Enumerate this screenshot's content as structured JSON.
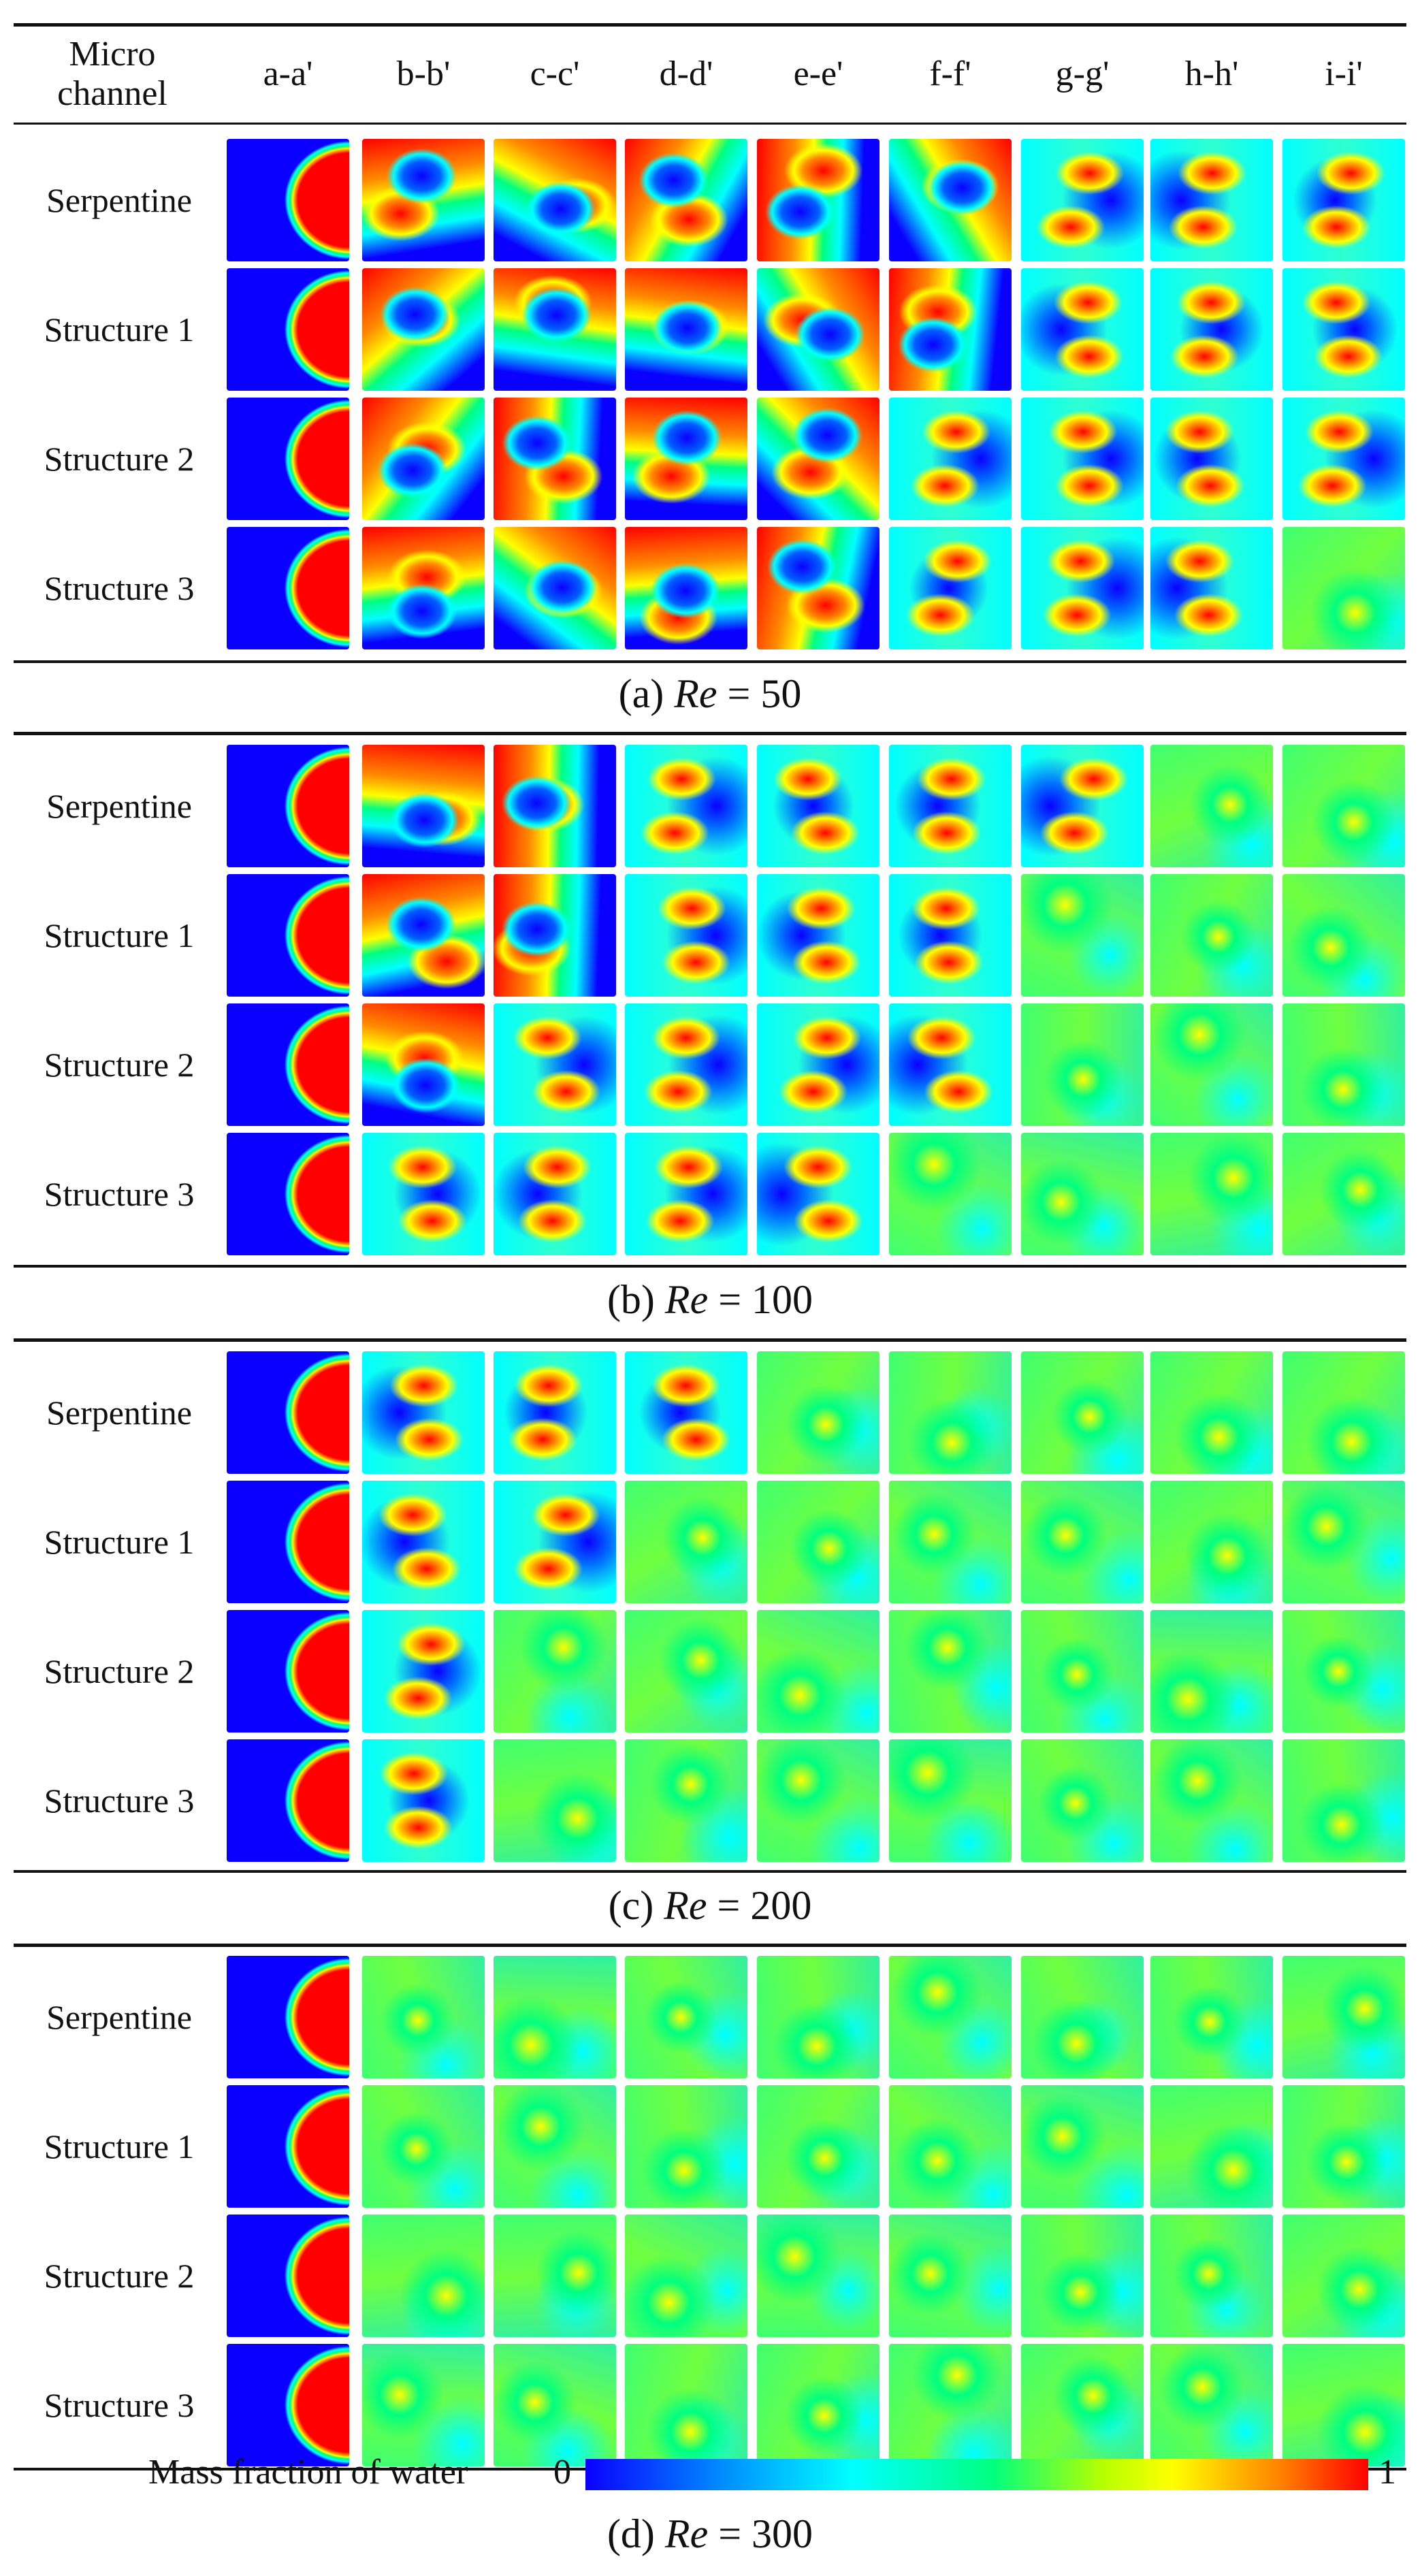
{
  "header": {
    "channel_label": "Micro\nchannel",
    "columns": [
      "a-a'",
      "b-b'",
      "c-c'",
      "d-d'",
      "e-e'",
      "f-f'",
      "g-g'",
      "h-h'",
      "i-i'"
    ]
  },
  "panels": [
    {
      "id": "a",
      "caption_prefix": "(a) ",
      "caption_var": "Re",
      "caption_suffix": " = 50",
      "rows": [
        "Serpentine",
        "Structure 1",
        "Structure 2",
        "Structure 3"
      ]
    },
    {
      "id": "b",
      "caption_prefix": "(b) ",
      "caption_var": "Re",
      "caption_suffix": " = 100",
      "rows": [
        "Serpentine",
        "Structure 1",
        "Structure 2",
        "Structure 3"
      ]
    },
    {
      "id": "c",
      "caption_prefix": "(c) ",
      "caption_var": "Re",
      "caption_suffix": " = 200",
      "rows": [
        "Serpentine",
        "Structure 1",
        "Structure 2",
        "Structure 3"
      ]
    },
    {
      "id": "d",
      "caption_prefix": "(d) ",
      "caption_var": "Re",
      "caption_suffix": " = 300",
      "rows": [
        "Serpentine",
        "Structure 1",
        "Structure 2",
        "Structure 3"
      ]
    }
  ],
  "colorbar": {
    "label": "Mass fraction of water",
    "min": "0",
    "max": "1"
  },
  "colors": {
    "low": "#0a00ff",
    "cyan": "#00ffff",
    "green": "#00ff80",
    "yellow": "#ffff00",
    "orange": "#ff8a00",
    "high": "#ff0000"
  }
}
